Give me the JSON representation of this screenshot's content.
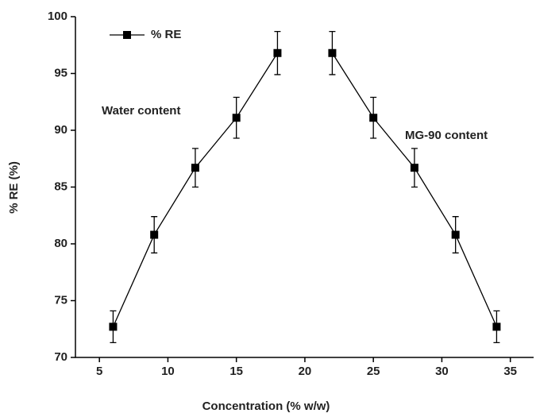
{
  "chart_data": {
    "type": "line",
    "x_label": "Concentration (% w/w)",
    "y_label": "% RE (%)",
    "annotations": [
      "Water content",
      "MG-90 content"
    ],
    "x": [
      6,
      9,
      12,
      15,
      18,
      null,
      22,
      25,
      28,
      31,
      34
    ],
    "series": [
      {
        "name": "% RE",
        "color": "#000000",
        "values": [
          72.7,
          80.8,
          86.7,
          91.1,
          96.8,
          null,
          96.8,
          91.1,
          86.7,
          80.8,
          72.7
        ],
        "errors": [
          1.4,
          1.6,
          1.7,
          1.8,
          1.9,
          null,
          1.9,
          1.8,
          1.7,
          1.6,
          1.4
        ]
      }
    ],
    "xlim": [
      3.25,
      36.7
    ],
    "xticks": [
      5,
      10,
      15,
      20,
      25,
      30,
      35
    ],
    "ylim": [
      70,
      100
    ],
    "yticks": [
      70,
      75,
      80,
      85,
      90,
      95,
      100
    ],
    "legend": "upper left"
  }
}
